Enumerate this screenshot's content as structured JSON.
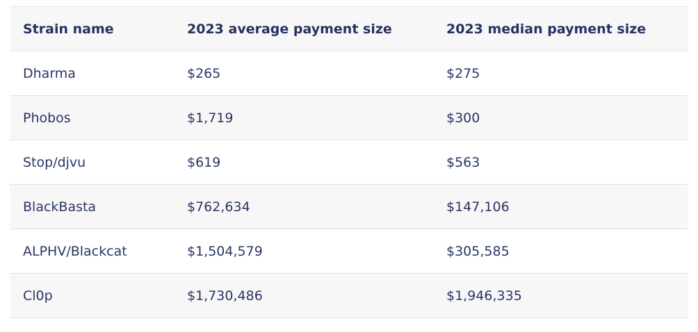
{
  "table": {
    "headers": [
      "Strain name",
      "2023 average payment size",
      "2023 median payment size"
    ],
    "rows": [
      [
        "Dharma",
        "$265",
        "$275"
      ],
      [
        "Phobos",
        "$1,719",
        "$300"
      ],
      [
        "Stop/djvu",
        "$619",
        "$563"
      ],
      [
        "BlackBasta",
        "$762,634",
        "$147,106"
      ],
      [
        "ALPHV/Blackcat",
        "$1,504,579",
        "$305,585"
      ],
      [
        "Cl0p",
        "$1,730,486",
        "$1,946,335"
      ]
    ]
  },
  "colors": {
    "text": "#2a3566",
    "row_shade": "#f7f7f7",
    "border": "#e3e3e3"
  }
}
